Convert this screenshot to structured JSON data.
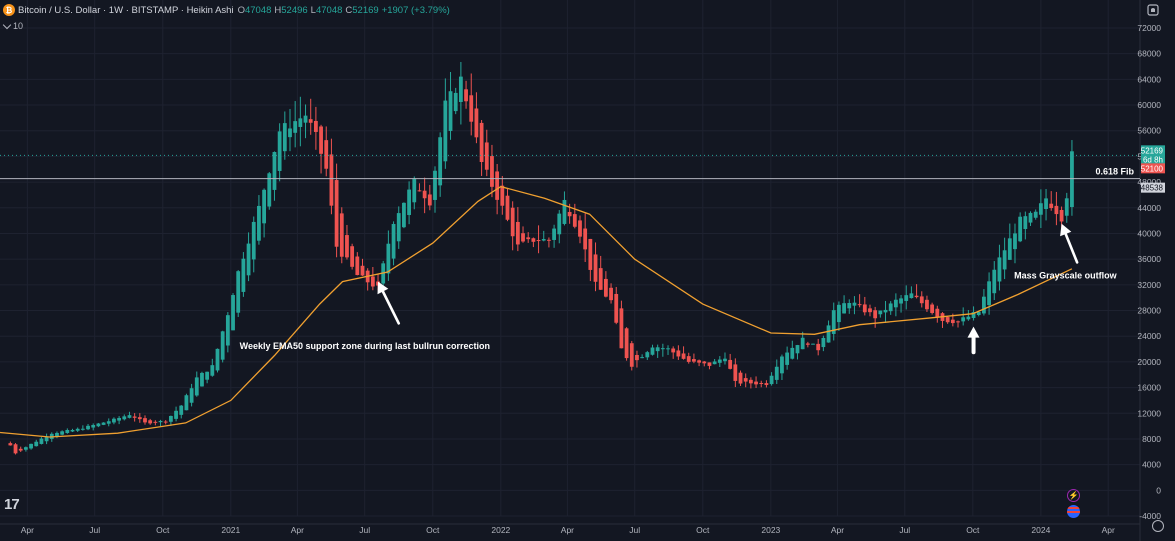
{
  "header": {
    "symbol": "Bitcoin / U.S. Dollar · 1W · BITSTAMP · Heikin Ashi",
    "open_label": "O",
    "open": "47048",
    "high_label": "H",
    "high": "52496",
    "low_label": "L",
    "low": "47048",
    "close_label": "C",
    "close": "52169",
    "change": "+1907 (+3.79%)",
    "indicator_length": "10"
  },
  "icons": [
    "bitcoin-icon",
    "chevron-down-icon",
    "tradingview-logo",
    "bell-icon",
    "settings-icon",
    "lightning-event-icon",
    "us-flag-event-icon"
  ],
  "colors": {
    "bg": "#131722",
    "up": "#26a69a",
    "down": "#ef5350",
    "ema": "#f0a030",
    "fib": "#b2b5be",
    "grid": "#1e2230",
    "text": "#b2b5be",
    "arrow": "#ffffff"
  },
  "chart_data": {
    "type": "candlestick",
    "chart_style": "Heikin Ashi",
    "timeframe": "1W",
    "exchange": "BITSTAMP",
    "ylim": [
      -4000,
      72000
    ],
    "yticks": [
      -4000,
      0,
      4000,
      8000,
      12000,
      16000,
      20000,
      24000,
      28000,
      32000,
      36000,
      40000,
      44000,
      48000,
      52000,
      56000,
      60000,
      64000,
      68000,
      72000
    ],
    "ytick_labels": [
      "-4000",
      "0",
      "4000",
      "8000",
      "12000",
      "16000",
      "20000",
      "24000",
      "28000",
      "32000",
      "36000",
      "40000",
      "44000",
      "48000",
      "52000",
      "56000",
      "60000",
      "64000",
      "68000",
      "72000"
    ],
    "xtick_labels": [
      "Apr",
      "Jul",
      "Oct",
      "2021",
      "Apr",
      "Jul",
      "Oct",
      "2022",
      "Apr",
      "Jul",
      "Oct",
      "2023",
      "Apr",
      "Jul",
      "Oct",
      "2024",
      "Apr"
    ],
    "xtick_dates": [
      "2020-04",
      "2020-07",
      "2020-10",
      "2021-01",
      "2021-04",
      "2021-07",
      "2021-10",
      "2022-01",
      "2022-04",
      "2022-07",
      "2022-10",
      "2023-01",
      "2023-04",
      "2023-07",
      "2023-10",
      "2024-01",
      "2024-04"
    ],
    "x_range_dates": [
      "2020-02-24",
      "2024-05-14"
    ],
    "grid": true,
    "close_key_points": [
      [
        "2020-03-09",
        7000
      ],
      [
        "2020-03-16",
        5800
      ],
      [
        "2020-04-06",
        7200
      ],
      [
        "2020-05-04",
        8900
      ],
      [
        "2020-06-08",
        9500
      ],
      [
        "2020-07-27",
        11000
      ],
      [
        "2020-08-17",
        11800
      ],
      [
        "2020-09-07",
        10500
      ],
      [
        "2020-10-05",
        10800
      ],
      [
        "2020-10-26",
        13200
      ],
      [
        "2020-11-16",
        17500
      ],
      [
        "2020-12-07",
        19300
      ],
      [
        "2020-12-28",
        27500
      ],
      [
        "2021-01-11",
        34000
      ],
      [
        "2021-02-08",
        44000
      ],
      [
        "2021-02-22",
        50000
      ],
      [
        "2021-03-08",
        56000
      ],
      [
        "2021-04-12",
        58500
      ],
      [
        "2021-04-26",
        55000
      ],
      [
        "2021-05-10",
        50000
      ],
      [
        "2021-05-24",
        38000
      ],
      [
        "2021-06-21",
        33500
      ],
      [
        "2021-07-19",
        31500
      ],
      [
        "2021-08-09",
        42000
      ],
      [
        "2021-09-06",
        48000
      ],
      [
        "2021-09-27",
        45000
      ],
      [
        "2021-10-18",
        60000
      ],
      [
        "2021-11-08",
        64000
      ],
      [
        "2021-11-22",
        58000
      ],
      [
        "2021-12-06",
        51000
      ],
      [
        "2022-01-03",
        44000
      ],
      [
        "2022-01-24",
        38000
      ],
      [
        "2022-02-14",
        39000
      ],
      [
        "2022-03-07",
        39000
      ],
      [
        "2022-03-28",
        45000
      ],
      [
        "2022-04-18",
        40000
      ],
      [
        "2022-05-09",
        32000
      ],
      [
        "2022-05-30",
        29500
      ],
      [
        "2022-06-13",
        22000
      ],
      [
        "2022-06-27",
        19500
      ],
      [
        "2022-07-25",
        22500
      ],
      [
        "2022-08-15",
        22000
      ],
      [
        "2022-09-12",
        20000
      ],
      [
        "2022-10-10",
        19500
      ],
      [
        "2022-10-31",
        20800
      ],
      [
        "2022-11-14",
        16800
      ],
      [
        "2022-12-26",
        16600
      ],
      [
        "2023-01-16",
        21000
      ],
      [
        "2023-02-13",
        23500
      ],
      [
        "2023-03-06",
        22000
      ],
      [
        "2023-03-27",
        28000
      ],
      [
        "2023-04-17",
        29500
      ],
      [
        "2023-05-22",
        27000
      ],
      [
        "2023-06-19",
        29500
      ],
      [
        "2023-07-10",
        30500
      ],
      [
        "2023-08-21",
        26500
      ],
      [
        "2023-09-11",
        26300
      ],
      [
        "2023-10-09",
        27800
      ],
      [
        "2023-10-30",
        34500
      ],
      [
        "2023-12-04",
        42000
      ],
      [
        "2023-12-25",
        43000
      ],
      [
        "2024-01-08",
        45500
      ],
      [
        "2024-01-29",
        42500
      ],
      [
        "2024-02-05",
        46000
      ],
      [
        "2024-02-12",
        52169
      ]
    ],
    "ema50_key_points": [
      [
        "2020-02-24",
        9000
      ],
      [
        "2020-05-01",
        8300
      ],
      [
        "2020-08-01",
        8900
      ],
      [
        "2020-11-01",
        10500
      ],
      [
        "2021-01-01",
        14000
      ],
      [
        "2021-03-01",
        21000
      ],
      [
        "2021-05-01",
        29000
      ],
      [
        "2021-06-01",
        32500
      ],
      [
        "2021-08-01",
        34000
      ],
      [
        "2021-10-01",
        38500
      ],
      [
        "2021-12-01",
        45000
      ],
      [
        "2022-01-01",
        47300
      ],
      [
        "2022-03-01",
        45500
      ],
      [
        "2022-05-01",
        43000
      ],
      [
        "2022-07-01",
        36000
      ],
      [
        "2022-10-01",
        29000
      ],
      [
        "2023-01-01",
        24500
      ],
      [
        "2023-03-01",
        24300
      ],
      [
        "2023-05-01",
        25800
      ],
      [
        "2023-08-01",
        26800
      ],
      [
        "2023-10-01",
        27500
      ],
      [
        "2023-12-01",
        30500
      ],
      [
        "2024-02-12",
        34500
      ]
    ],
    "horizontal_line": {
      "label": "0.618 Fib",
      "value": 48538
    },
    "price_labels": [
      "52169",
      "6d 8h",
      "52100",
      "48538"
    ],
    "annotations": [
      {
        "text": "Weekly EMA50 support zone during last bullrun correction",
        "date": "2021-07-12",
        "price": 22000
      },
      {
        "text": "Mass Grayscale outflow",
        "date": "2024-01-22",
        "price": 33000
      }
    ],
    "arrows": [
      {
        "from": [
          "2021-08-16",
          26000
        ],
        "to": [
          "2021-07-19",
          32500
        ]
      },
      {
        "from": [
          "2023-10-02",
          21500
        ],
        "to": [
          "2023-10-02",
          25500
        ]
      },
      {
        "from": [
          "2024-02-19",
          35500
        ],
        "to": [
          "2024-01-29",
          41500
        ]
      }
    ]
  }
}
